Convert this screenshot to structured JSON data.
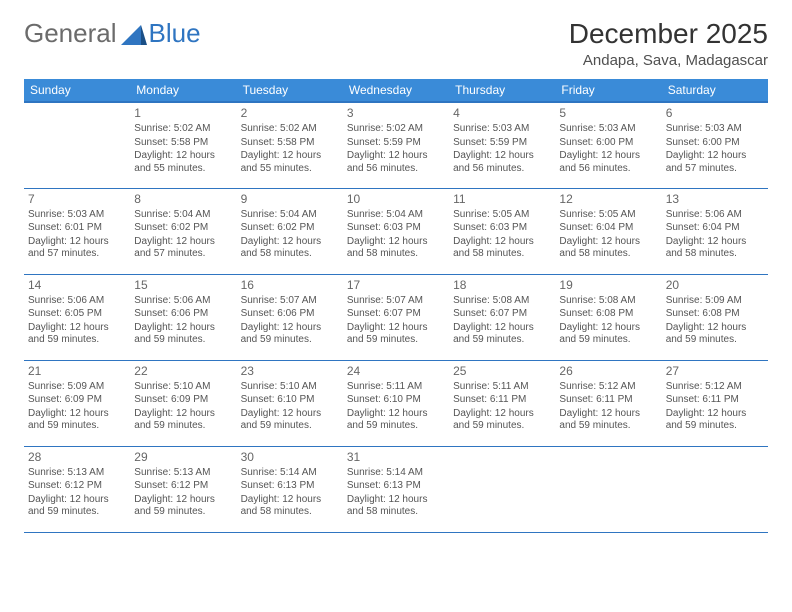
{
  "logo": {
    "text1": "General",
    "text2": "Blue"
  },
  "header": {
    "month_year": "December 2025",
    "location": "Andapa, Sava, Madagascar"
  },
  "colors": {
    "header_bg": "#3a8bd8",
    "header_border": "#2f75c1",
    "cell_border": "#2f75c1",
    "text": "#555555",
    "title": "#333333"
  },
  "day_names": [
    "Sunday",
    "Monday",
    "Tuesday",
    "Wednesday",
    "Thursday",
    "Friday",
    "Saturday"
  ],
  "first_weekday": 1,
  "days": [
    {
      "n": 1,
      "sr": "5:02 AM",
      "ss": "5:58 PM",
      "dl": "12 hours and 55 minutes."
    },
    {
      "n": 2,
      "sr": "5:02 AM",
      "ss": "5:58 PM",
      "dl": "12 hours and 55 minutes."
    },
    {
      "n": 3,
      "sr": "5:02 AM",
      "ss": "5:59 PM",
      "dl": "12 hours and 56 minutes."
    },
    {
      "n": 4,
      "sr": "5:03 AM",
      "ss": "5:59 PM",
      "dl": "12 hours and 56 minutes."
    },
    {
      "n": 5,
      "sr": "5:03 AM",
      "ss": "6:00 PM",
      "dl": "12 hours and 56 minutes."
    },
    {
      "n": 6,
      "sr": "5:03 AM",
      "ss": "6:00 PM",
      "dl": "12 hours and 57 minutes."
    },
    {
      "n": 7,
      "sr": "5:03 AM",
      "ss": "6:01 PM",
      "dl": "12 hours and 57 minutes."
    },
    {
      "n": 8,
      "sr": "5:04 AM",
      "ss": "6:02 PM",
      "dl": "12 hours and 57 minutes."
    },
    {
      "n": 9,
      "sr": "5:04 AM",
      "ss": "6:02 PM",
      "dl": "12 hours and 58 minutes."
    },
    {
      "n": 10,
      "sr": "5:04 AM",
      "ss": "6:03 PM",
      "dl": "12 hours and 58 minutes."
    },
    {
      "n": 11,
      "sr": "5:05 AM",
      "ss": "6:03 PM",
      "dl": "12 hours and 58 minutes."
    },
    {
      "n": 12,
      "sr": "5:05 AM",
      "ss": "6:04 PM",
      "dl": "12 hours and 58 minutes."
    },
    {
      "n": 13,
      "sr": "5:06 AM",
      "ss": "6:04 PM",
      "dl": "12 hours and 58 minutes."
    },
    {
      "n": 14,
      "sr": "5:06 AM",
      "ss": "6:05 PM",
      "dl": "12 hours and 59 minutes."
    },
    {
      "n": 15,
      "sr": "5:06 AM",
      "ss": "6:06 PM",
      "dl": "12 hours and 59 minutes."
    },
    {
      "n": 16,
      "sr": "5:07 AM",
      "ss": "6:06 PM",
      "dl": "12 hours and 59 minutes."
    },
    {
      "n": 17,
      "sr": "5:07 AM",
      "ss": "6:07 PM",
      "dl": "12 hours and 59 minutes."
    },
    {
      "n": 18,
      "sr": "5:08 AM",
      "ss": "6:07 PM",
      "dl": "12 hours and 59 minutes."
    },
    {
      "n": 19,
      "sr": "5:08 AM",
      "ss": "6:08 PM",
      "dl": "12 hours and 59 minutes."
    },
    {
      "n": 20,
      "sr": "5:09 AM",
      "ss": "6:08 PM",
      "dl": "12 hours and 59 minutes."
    },
    {
      "n": 21,
      "sr": "5:09 AM",
      "ss": "6:09 PM",
      "dl": "12 hours and 59 minutes."
    },
    {
      "n": 22,
      "sr": "5:10 AM",
      "ss": "6:09 PM",
      "dl": "12 hours and 59 minutes."
    },
    {
      "n": 23,
      "sr": "5:10 AM",
      "ss": "6:10 PM",
      "dl": "12 hours and 59 minutes."
    },
    {
      "n": 24,
      "sr": "5:11 AM",
      "ss": "6:10 PM",
      "dl": "12 hours and 59 minutes."
    },
    {
      "n": 25,
      "sr": "5:11 AM",
      "ss": "6:11 PM",
      "dl": "12 hours and 59 minutes."
    },
    {
      "n": 26,
      "sr": "5:12 AM",
      "ss": "6:11 PM",
      "dl": "12 hours and 59 minutes."
    },
    {
      "n": 27,
      "sr": "5:12 AM",
      "ss": "6:11 PM",
      "dl": "12 hours and 59 minutes."
    },
    {
      "n": 28,
      "sr": "5:13 AM",
      "ss": "6:12 PM",
      "dl": "12 hours and 59 minutes."
    },
    {
      "n": 29,
      "sr": "5:13 AM",
      "ss": "6:12 PM",
      "dl": "12 hours and 59 minutes."
    },
    {
      "n": 30,
      "sr": "5:14 AM",
      "ss": "6:13 PM",
      "dl": "12 hours and 58 minutes."
    },
    {
      "n": 31,
      "sr": "5:14 AM",
      "ss": "6:13 PM",
      "dl": "12 hours and 58 minutes."
    }
  ],
  "labels": {
    "sunrise": "Sunrise:",
    "sunset": "Sunset:",
    "daylight": "Daylight:"
  }
}
